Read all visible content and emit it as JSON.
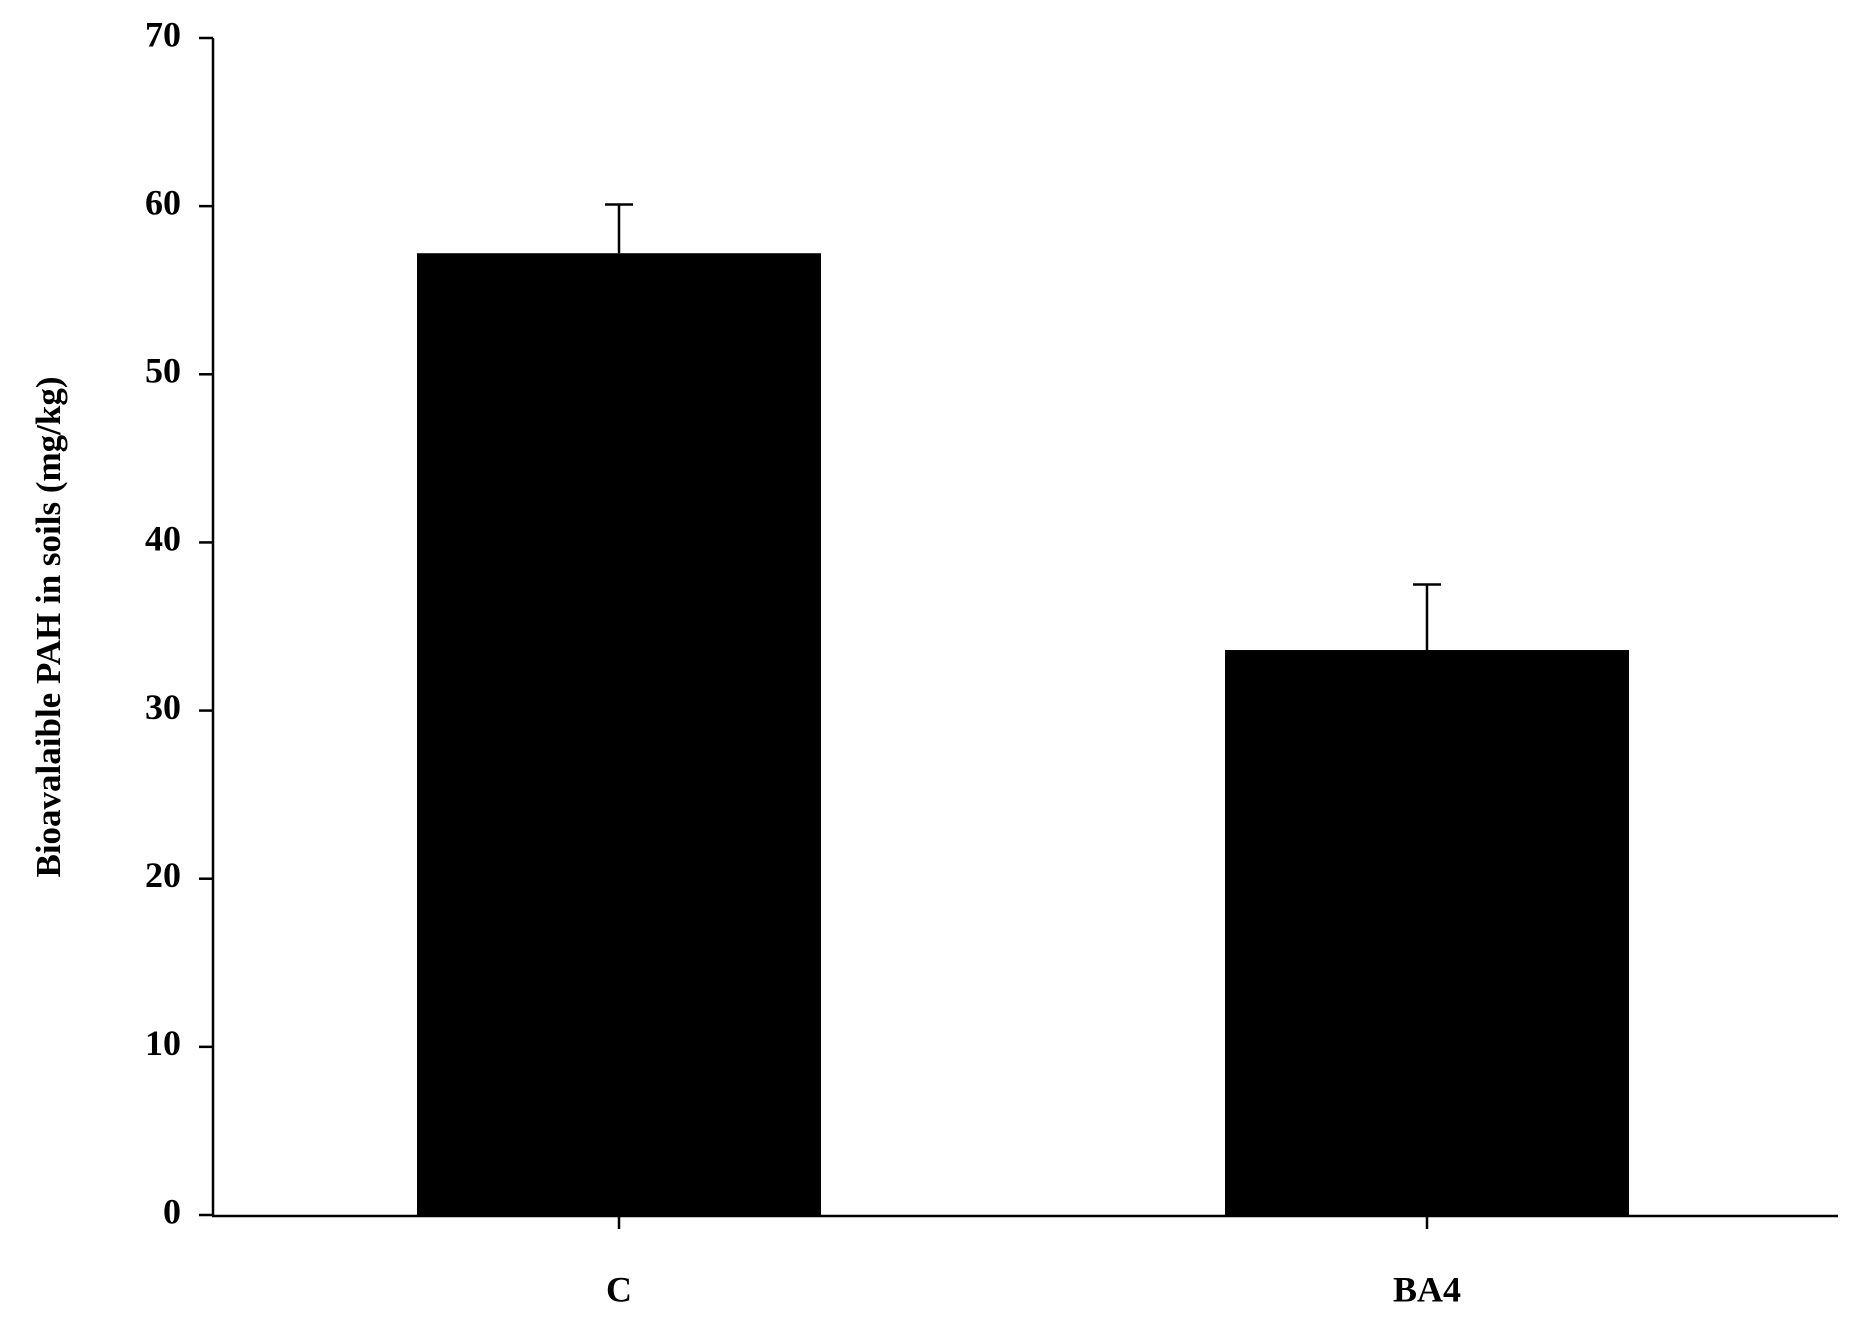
{
  "chart_data": {
    "type": "bar",
    "y_label": "Bioavalaible PAH in soils (mg/kg)",
    "categories": [
      "C",
      "BA4"
    ],
    "values": [
      57.2,
      33.6
    ],
    "errors": [
      2.9,
      3.9
    ],
    "color": "#000000",
    "ylim": [
      0,
      70
    ],
    "yticks": [
      0,
      10,
      20,
      30,
      40,
      50,
      60,
      70
    ]
  }
}
